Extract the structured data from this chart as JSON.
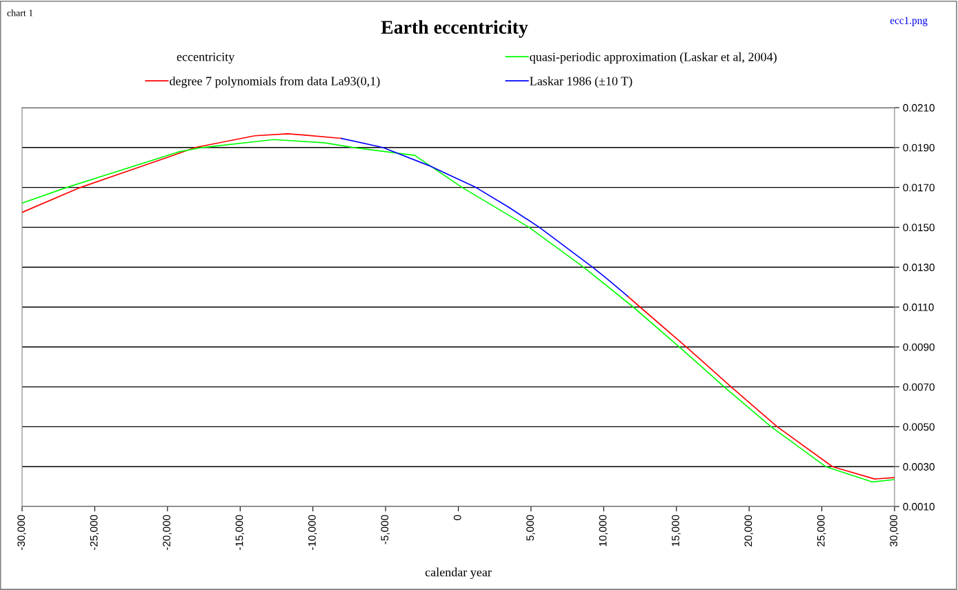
{
  "chart_data": {
    "type": "line",
    "title": "Earth eccentricity",
    "xlabel": "calendar year",
    "annotations": [
      "chart 1",
      "ecc1.png",
      "eccentricity"
    ],
    "series": [
      {
        "name": "degree 7 polynomials from data La93(0,1)",
        "color": "#ff0000",
        "x": [
          -30000,
          -25980,
          -20000,
          -18100,
          -14000,
          -11740,
          -10650,
          -8040,
          0,
          11640,
          12500,
          15680,
          18760,
          21930,
          25730,
          28630,
          30000
        ],
        "values": [
          0.01575,
          0.017,
          0.01851,
          0.019,
          0.01959,
          0.01969,
          0.01963,
          0.01946,
          null,
          0.01155,
          0.011,
          0.009,
          0.007,
          0.005,
          0.003,
          0.00238,
          0.00245
        ]
      },
      {
        "name": "quasi-periodic approximation (Laskar et al, 2004)",
        "color": "#00ff00",
        "x": [
          -30000,
          -26930,
          -19190,
          -17620,
          -12690,
          -9225,
          -7190,
          -3000,
          260,
          4860,
          8610,
          12030,
          15200,
          18280,
          21510,
          25260,
          28490,
          30000
        ],
        "values": [
          0.01621,
          0.017,
          0.01879,
          0.019,
          0.0194,
          0.01924,
          0.019,
          0.01861,
          0.017,
          0.015,
          0.013,
          0.011,
          0.009,
          0.007,
          0.005,
          0.003,
          0.00223,
          0.00235
        ]
      },
      {
        "name": "Laskar 1986 (±10 T)",
        "color": "#0000ff",
        "x": [
          -8040,
          -5190,
          -2000,
          1210,
          3500,
          5570,
          9230,
          10220,
          11640
        ],
        "values": [
          0.01946,
          0.019,
          0.01809,
          0.017,
          0.01599,
          0.015,
          0.013,
          0.01242,
          0.01155
        ]
      }
    ],
    "xlim": [
      -30000,
      30000
    ],
    "xticks": [
      {
        "value": -30000,
        "label": "-30,000"
      },
      {
        "value": -25000,
        "label": "-25,000"
      },
      {
        "value": -20000,
        "label": "-20,000"
      },
      {
        "value": -15000,
        "label": "-15,000"
      },
      {
        "value": -10000,
        "label": "-10,000"
      },
      {
        "value": -5000,
        "label": "-5,000"
      },
      0,
      {
        "value": 5000,
        "label": "5,000"
      },
      {
        "value": 10000,
        "label": "10,000"
      },
      {
        "value": 15000,
        "label": "15,000"
      },
      {
        "value": 20000,
        "label": "20,000"
      },
      {
        "value": 25000,
        "label": "25,000"
      },
      {
        "value": 30000,
        "label": "30,000"
      }
    ],
    "ylim": [
      0.001,
      0.021
    ],
    "yticks": [
      {
        "value": 0.001,
        "label": "0.0010"
      },
      {
        "value": 0.003,
        "label": "0.0030"
      },
      {
        "value": 0.005,
        "label": "0.0050"
      },
      {
        "value": 0.007,
        "label": "0.0070"
      },
      {
        "value": 0.009,
        "label": "0.0090"
      },
      {
        "value": 0.011,
        "label": "0.0110"
      },
      {
        "value": 0.013,
        "label": "0.0130"
      },
      {
        "value": 0.015,
        "label": "0.0150"
      },
      {
        "value": 0.017,
        "label": "0.0170"
      },
      {
        "value": 0.019,
        "label": "0.0190"
      },
      {
        "value": 0.021,
        "label": "0.0210"
      }
    ],
    "grid": "y",
    "legend": "top",
    "marker": "none",
    "line_style": "solid"
  }
}
